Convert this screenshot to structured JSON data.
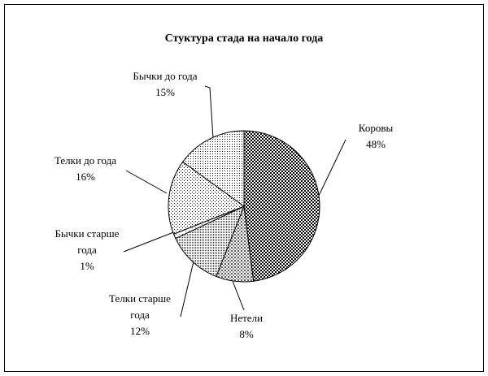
{
  "chart_data": {
    "type": "pie",
    "title": "Стуктура стада на начало года",
    "categories": [
      "Коровы",
      "Нетели",
      "Телки старше года",
      "Бычки старше года",
      "Телки до года",
      "Бычки до года"
    ],
    "values": [
      48,
      8,
      12,
      1,
      16,
      15
    ],
    "value_labels": [
      "48%",
      "8%",
      "12%",
      "1%",
      "16%",
      "15%"
    ]
  }
}
